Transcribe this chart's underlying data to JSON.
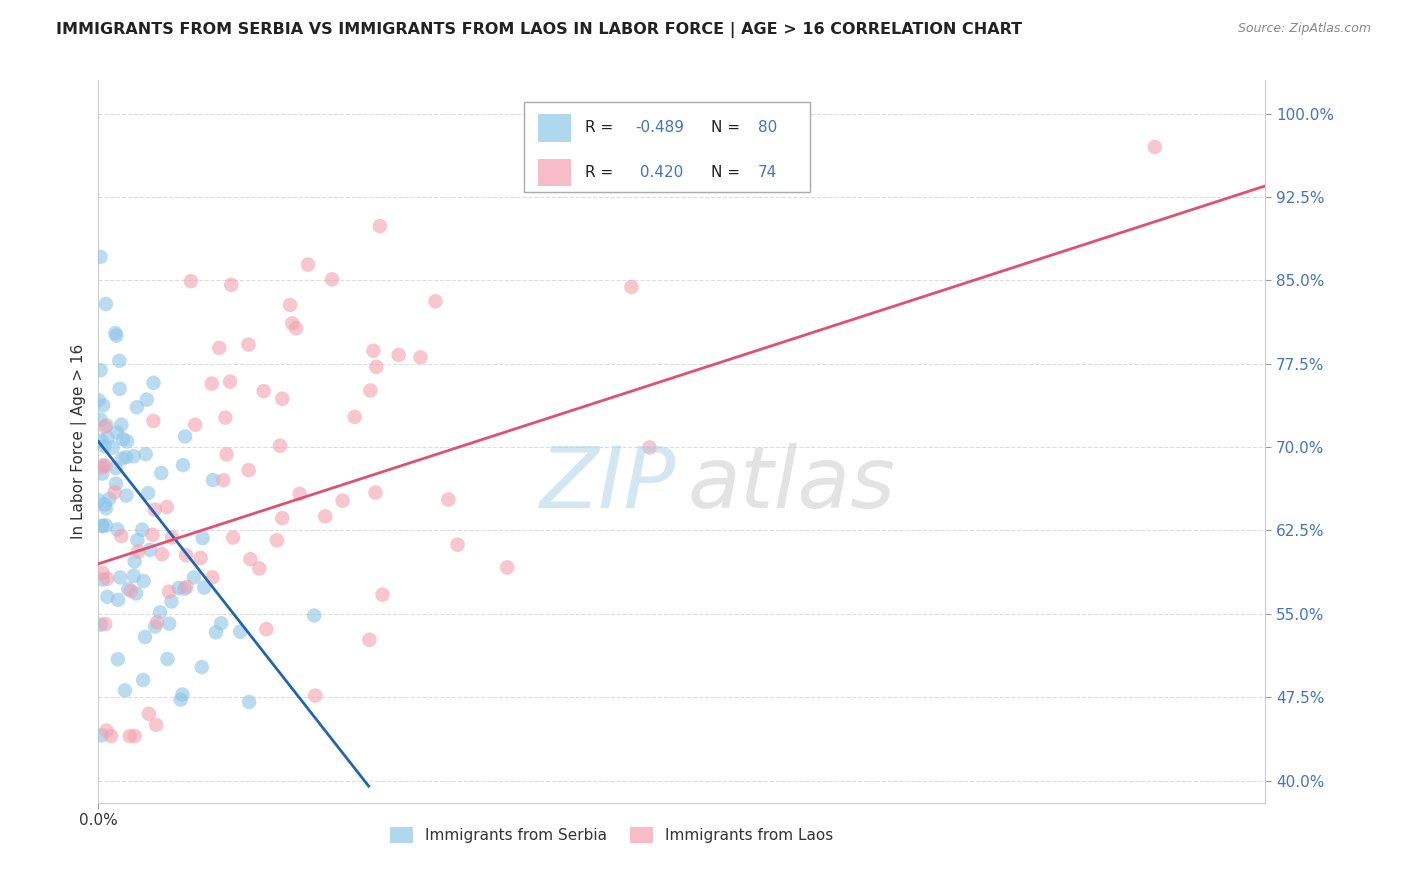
{
  "title": "IMMIGRANTS FROM SERBIA VS IMMIGRANTS FROM LAOS IN LABOR FORCE | AGE > 16 CORRELATION CHART",
  "source": "Source: ZipAtlas.com",
  "ylabel": "In Labor Force | Age > 16",
  "xlim": [
    0.0,
    0.095
  ],
  "ylim": [
    0.38,
    1.03
  ],
  "ytick_positions": [
    0.4,
    0.475,
    0.55,
    0.625,
    0.7,
    0.775,
    0.85,
    0.925,
    1.0
  ],
  "ytick_labels": [
    "40.0%",
    "47.5%",
    "55.0%",
    "62.5%",
    "70.0%",
    "77.5%",
    "85.0%",
    "92.5%",
    "100.0%"
  ],
  "xtick_positions": [
    0.0
  ],
  "xtick_labels": [
    "0.0%"
  ],
  "serbia_R": -0.489,
  "serbia_N": 80,
  "laos_R": 0.42,
  "laos_N": 74,
  "serbia_color": "#8ec6e6",
  "laos_color": "#f4a0b0",
  "serbia_line_color": "#2166ac",
  "laos_line_color": "#e05070",
  "watermark_zip_color": "#a8d0e8",
  "watermark_atlas_color": "#c8c8c8",
  "legend_label_serbia": "Immigrants from Serbia",
  "legend_label_laos": "Immigrants from Laos",
  "serbia_color_legend": "#8ec6e6",
  "laos_color_legend": "#f4a0b0",
  "title_color": "#222222",
  "source_color": "#888888",
  "ytick_color": "#4472c4",
  "xtick_color": "#333333",
  "ylabel_color": "#333333",
  "grid_color": "#dddddd",
  "spine_color": "#cccccc",
  "legend_box_color": "#aaaaaa",
  "info_box_r_color": "#222222",
  "info_box_n_color": "#4472c4",
  "info_box_val_color": "#4472c4"
}
